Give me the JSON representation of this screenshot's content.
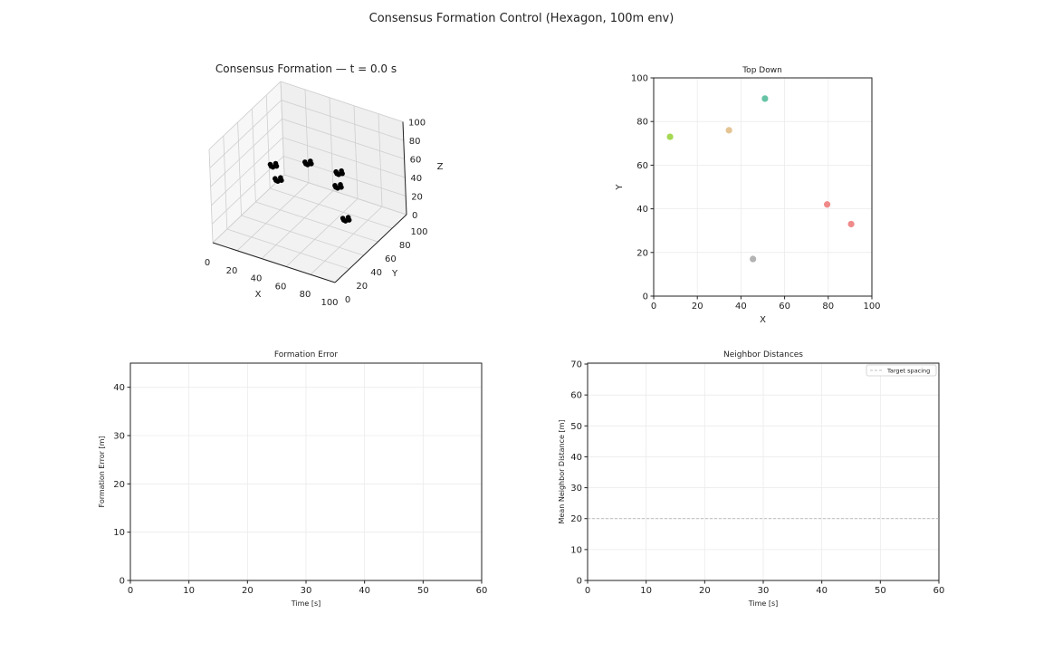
{
  "suptitle": "Consensus Formation Control (Hexagon, 100m env)",
  "chart_data": [
    {
      "type": "scatter3d",
      "title": "Consensus Formation — t = 0.0 s",
      "xlabel": "X",
      "ylabel": "Y",
      "zlabel": "Z",
      "xlim": [
        0,
        100
      ],
      "ylim": [
        0,
        100
      ],
      "zlim": [
        0,
        100
      ],
      "xticks": [
        "0",
        "20",
        "40",
        "60",
        "80",
        "100"
      ],
      "yticks": [
        "0",
        "20",
        "40",
        "60",
        "80",
        "100"
      ],
      "zticks": [
        "0",
        "20",
        "40",
        "60",
        "80",
        "100"
      ],
      "marker_color": "#000000",
      "points": [
        {
          "x": 7.5,
          "y": 73,
          "z": 33
        },
        {
          "x": 34.5,
          "y": 76,
          "z": 45
        },
        {
          "x": 51,
          "y": 90.5,
          "z": 31
        },
        {
          "x": 79.5,
          "y": 42,
          "z": 64
        },
        {
          "x": 90.5,
          "y": 33,
          "z": 40
        },
        {
          "x": 45.5,
          "y": 17,
          "z": 75
        }
      ]
    },
    {
      "type": "scatter",
      "title": "Top Down",
      "xlabel": "X",
      "ylabel": "Y",
      "xlim": [
        0,
        100
      ],
      "ylim": [
        0,
        100
      ],
      "grid": true,
      "xticks": [
        "0",
        "20",
        "40",
        "60",
        "80",
        "100"
      ],
      "yticks": [
        "0",
        "20",
        "40",
        "60",
        "80",
        "100"
      ],
      "points": [
        {
          "x": 7.5,
          "y": 73,
          "color": "#a6d854"
        },
        {
          "x": 34.5,
          "y": 76,
          "color": "#e5c494"
        },
        {
          "x": 51,
          "y": 90.5,
          "color": "#66c2a5"
        },
        {
          "x": 79.5,
          "y": 42,
          "color": "#f08a8a"
        },
        {
          "x": 90.5,
          "y": 33,
          "color": "#f08a8a"
        },
        {
          "x": 45.5,
          "y": 17,
          "color": "#b3b3b3"
        }
      ]
    },
    {
      "type": "line",
      "title": "Formation Error",
      "xlabel": "Time [s]",
      "ylabel": "Formation Error [m]",
      "xlim": [
        0,
        60
      ],
      "ylim": [
        0,
        45
      ],
      "grid": true,
      "xticks": [
        "0",
        "10",
        "20",
        "30",
        "40",
        "50",
        "60"
      ],
      "yticks": [
        "0",
        "10",
        "20",
        "30",
        "40"
      ],
      "series": []
    },
    {
      "type": "line",
      "title": "Neighbor Distances",
      "xlabel": "Time [s]",
      "ylabel": "Mean Neighbor Distance [m]",
      "xlim": [
        0,
        60
      ],
      "ylim": [
        0,
        70.3
      ],
      "grid": true,
      "xticks": [
        "0",
        "10",
        "20",
        "30",
        "40",
        "50",
        "60"
      ],
      "yticks": [
        "0",
        "10",
        "20",
        "30",
        "40",
        "50",
        "60",
        "70"
      ],
      "series": [],
      "hlines": [
        {
          "name": "Target spacing",
          "y": 20,
          "color": "#aaaaaa",
          "style": "dashed"
        }
      ],
      "legend": "top-right"
    }
  ]
}
